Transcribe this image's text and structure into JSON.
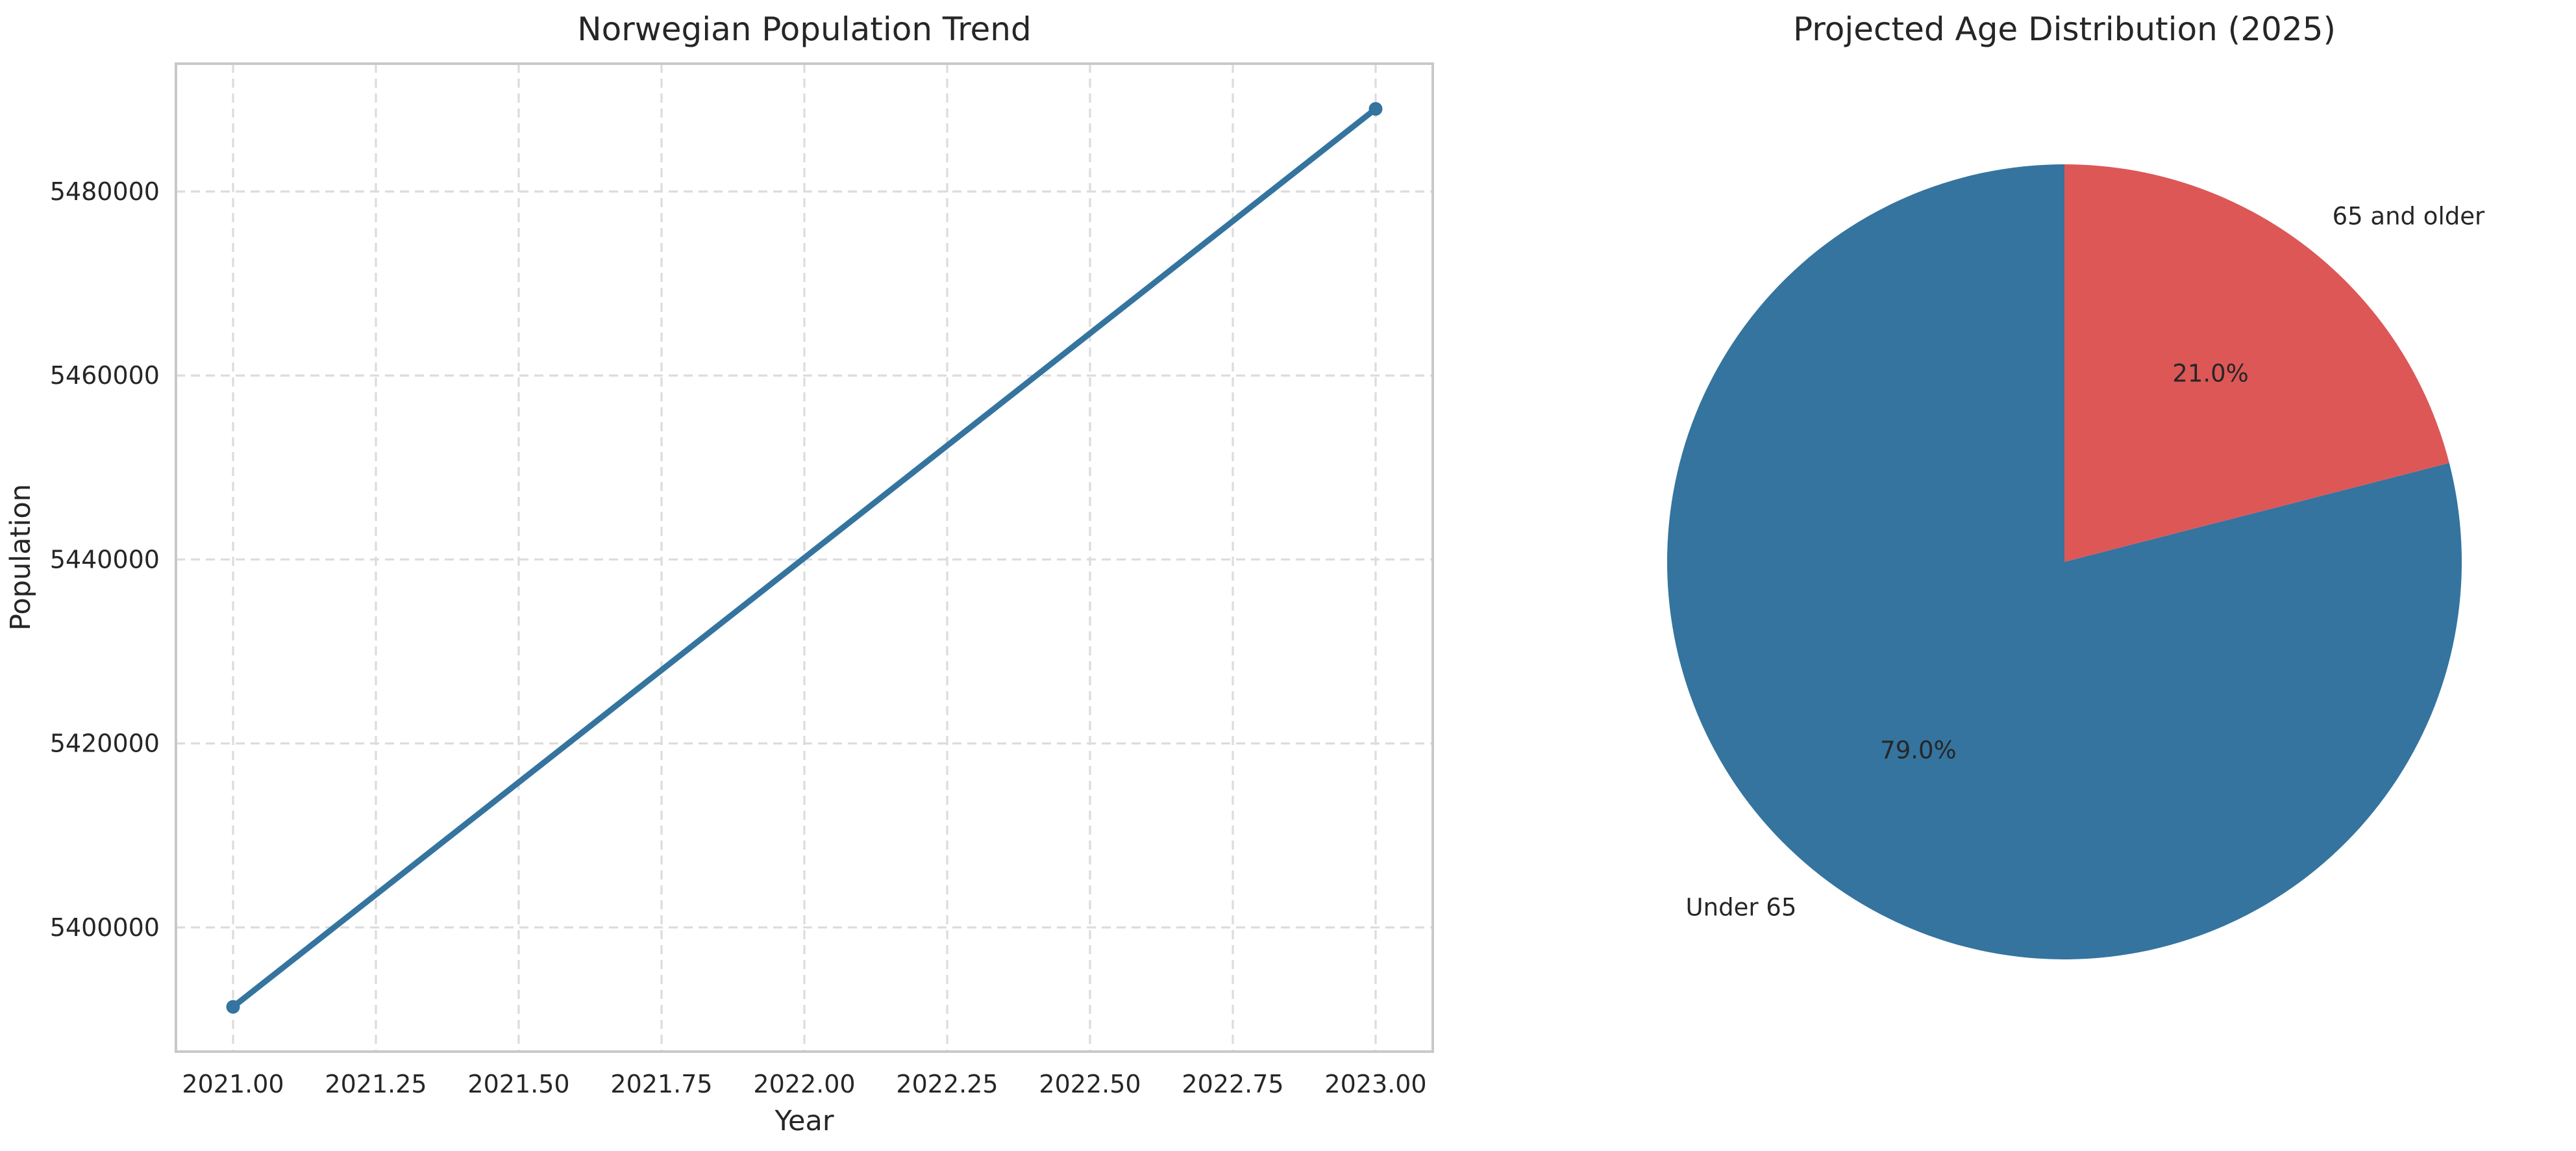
{
  "figure": {
    "background": "#ffffff",
    "text_color": "#262626",
    "grid_color": "#dcdcdc",
    "spine_color": "#c9c9c9"
  },
  "chart_data": [
    {
      "type": "line",
      "title": "Norwegian Population Trend",
      "xlabel": "Year",
      "ylabel": "Population",
      "x": [
        2021,
        2023
      ],
      "y": [
        5391369,
        5488984
      ],
      "line_color": "#34749f",
      "marker": "o",
      "grid": true,
      "grid_style": "dashed",
      "xlim": [
        2020.9,
        2023.1
      ],
      "ylim": [
        5386500,
        5493900
      ],
      "xtick_values": [
        2021.0,
        2021.25,
        2021.5,
        2021.75,
        2022.0,
        2022.25,
        2022.5,
        2022.75,
        2023.0
      ],
      "xtick_labels": [
        "2021.00",
        "2021.25",
        "2021.50",
        "2021.75",
        "2022.00",
        "2022.25",
        "2022.50",
        "2022.75",
        "2023.00"
      ],
      "ytick_values": [
        5400000,
        5420000,
        5440000,
        5460000,
        5480000
      ],
      "ytick_labels": [
        "5400000",
        "5420000",
        "5440000",
        "5460000",
        "5480000"
      ],
      "legend": "none"
    },
    {
      "type": "pie",
      "title": "Projected Age Distribution (2025)",
      "labels": [
        "Under 65",
        "65 and older"
      ],
      "values": [
        79.0,
        21.0
      ],
      "autopct_labels": [
        "79.0%",
        "21.0%"
      ],
      "colors": [
        "#34749f",
        "#dd5757"
      ],
      "startangle": 90,
      "counterclock": true,
      "legend": "none"
    }
  ]
}
